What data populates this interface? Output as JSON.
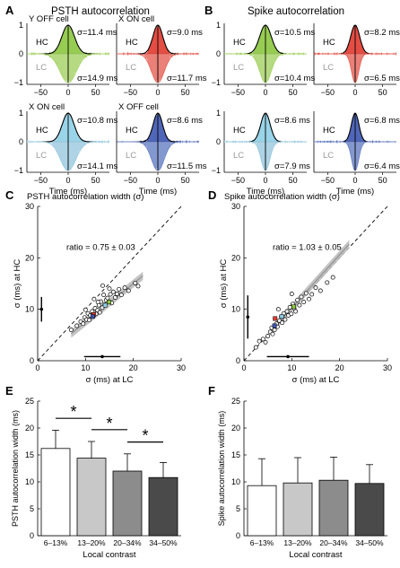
{
  "panels": {
    "A": {
      "letter": "A",
      "title": "PSTH autocorrelation"
    },
    "B": {
      "letter": "B",
      "title": "Spike autocorrelation"
    },
    "C": {
      "letter": "C",
      "title": "PSTH autocorrelation width (σ)"
    },
    "D": {
      "letter": "D",
      "title": "Spike autocorrelation width (σ)"
    },
    "E": {
      "letter": "E"
    },
    "F": {
      "letter": "F"
    }
  },
  "autocorr": {
    "hc_label": "HC",
    "lc_label": "LC",
    "xlabel": "Time (ms)",
    "xticks": [
      "−50",
      "0",
      "50"
    ],
    "yticks": [
      "1",
      "0",
      "−1"
    ],
    "cells": [
      {
        "panel": "A",
        "label": "Y OFF cell",
        "color": "#8cc63f",
        "lc_color": "#a9d46b",
        "sigma_hc": "σ=11.4 ms",
        "sigma_lc": "σ=14.9 ms",
        "s_hc": 11.4,
        "s_lc": 14.9,
        "show_xlabel": false,
        "show_yticks": true
      },
      {
        "panel": "A",
        "label": "X ON cell",
        "color": "#e03a2f",
        "lc_color": "#e66a5f",
        "sigma_hc": "σ=9.0 ms",
        "sigma_lc": "σ=11.7 ms",
        "s_hc": 9.0,
        "s_lc": 11.7,
        "show_xlabel": false,
        "show_yticks": false
      },
      {
        "panel": "A",
        "label": "X ON cell",
        "color": "#8ecfe6",
        "lc_color": "#9fcbe0",
        "sigma_hc": "σ=10.8 ms",
        "sigma_lc": "σ=14.1 ms",
        "s_hc": 10.8,
        "s_lc": 14.1,
        "show_xlabel": true,
        "show_yticks": true
      },
      {
        "panel": "A",
        "label": "X OFF cell",
        "color": "#3d55b0",
        "lc_color": "#6f86c8",
        "sigma_hc": "σ=8.6 ms",
        "sigma_lc": "σ=11.5 ms",
        "s_hc": 8.6,
        "s_lc": 11.5,
        "show_xlabel": true,
        "show_yticks": false
      },
      {
        "panel": "B",
        "label": "",
        "color": "#8cc63f",
        "lc_color": "#a9d46b",
        "sigma_hc": "σ=10.5 ms",
        "sigma_lc": "σ=10.4 ms",
        "s_hc": 10.5,
        "s_lc": 10.4,
        "show_xlabel": false,
        "show_yticks": true
      },
      {
        "panel": "B",
        "label": "",
        "color": "#e03a2f",
        "lc_color": "#e66a5f",
        "sigma_hc": "σ=8.2 ms",
        "sigma_lc": "σ=6.5 ms",
        "s_hc": 8.2,
        "s_lc": 6.5,
        "show_xlabel": false,
        "show_yticks": false
      },
      {
        "panel": "B",
        "label": "",
        "color": "#8ecfe6",
        "lc_color": "#9fcbe0",
        "sigma_hc": "σ=8.6 ms",
        "sigma_lc": "σ=7.9 ms",
        "s_hc": 8.6,
        "s_lc": 7.9,
        "show_xlabel": true,
        "show_yticks": true
      },
      {
        "panel": "B",
        "label": "",
        "color": "#3d55b0",
        "lc_color": "#6f86c8",
        "sigma_hc": "σ=6.8 ms",
        "sigma_lc": "σ=6.4 ms",
        "s_hc": 6.8,
        "s_lc": 6.4,
        "show_xlabel": true,
        "show_yticks": false
      }
    ]
  },
  "chart_data": [
    {
      "type": "scatter",
      "panel": "C",
      "title": "PSTH autocorrelation width (σ)",
      "xlabel": "σ (ms) at LC",
      "ylabel": "σ (ms) at HC",
      "xlim": [
        0,
        30
      ],
      "ylim": [
        0,
        30
      ],
      "xticks": [
        0,
        10,
        20,
        30
      ],
      "yticks": [
        0,
        10,
        20,
        30
      ],
      "annotation": "ratio = 0.75 ± 0.03",
      "fit_slope": 0.75,
      "x_mean": 13.5,
      "x_err": 3.8,
      "y_mean": 10.0,
      "y_err": 2.4,
      "points": [
        [
          7.0,
          6.0
        ],
        [
          8.2,
          6.8
        ],
        [
          9.0,
          7.6
        ],
        [
          9.5,
          7.2
        ],
        [
          9.8,
          8.4
        ],
        [
          10.2,
          8.0
        ],
        [
          10.5,
          9.2
        ],
        [
          10.8,
          7.9
        ],
        [
          11.0,
          8.8
        ],
        [
          11.4,
          9.6
        ],
        [
          11.6,
          8.6
        ],
        [
          12.0,
          10.2
        ],
        [
          12.2,
          9.1
        ],
        [
          12.5,
          9.8
        ],
        [
          12.8,
          10.8
        ],
        [
          13.0,
          9.4
        ],
        [
          13.2,
          11.5
        ],
        [
          13.5,
          10.3
        ],
        [
          13.8,
          12.8
        ],
        [
          14.0,
          10.9
        ],
        [
          14.3,
          11.8
        ],
        [
          14.6,
          12.2
        ],
        [
          14.9,
          11.4
        ],
        [
          15.2,
          12.9
        ],
        [
          15.5,
          11.2
        ],
        [
          15.8,
          13.4
        ],
        [
          16.2,
          12.3
        ],
        [
          16.6,
          13.0
        ],
        [
          17.0,
          13.9
        ],
        [
          17.5,
          12.8
        ],
        [
          18.2,
          14.2
        ],
        [
          19.0,
          13.6
        ],
        [
          20.4,
          15.1
        ],
        [
          21.0,
          14.5
        ],
        [
          11.8,
          12.0
        ],
        [
          12.6,
          11.4
        ],
        [
          13.6,
          14.6
        ],
        [
          10.0,
          9.9
        ],
        [
          15.0,
          14.0
        ]
      ],
      "highlights": [
        {
          "x": 14.9,
          "y": 11.4,
          "color": "#8cc63f"
        },
        {
          "x": 11.7,
          "y": 9.0,
          "color": "#e03a2f"
        },
        {
          "x": 14.1,
          "y": 10.8,
          "color": "#8ecfe6"
        },
        {
          "x": 11.5,
          "y": 8.6,
          "color": "#3d55b0"
        }
      ]
    },
    {
      "type": "scatter",
      "panel": "D",
      "title": "Spike autocorrelation width (σ)",
      "xlabel": "σ (ms) at LC",
      "ylabel": "σ (ms) at HC",
      "xlim": [
        0,
        30
      ],
      "ylim": [
        0,
        30
      ],
      "xticks": [
        0,
        10,
        20,
        30
      ],
      "yticks": [
        0,
        10,
        20,
        30
      ],
      "annotation": "ratio = 1.03 ± 0.05",
      "fit_slope": 1.03,
      "x_mean": 9.2,
      "x_err": 4.4,
      "y_mean": 8.5,
      "y_err": 4.2,
      "points": [
        [
          2.5,
          2.6
        ],
        [
          3.2,
          3.8
        ],
        [
          4.0,
          4.2
        ],
        [
          4.5,
          3.6
        ],
        [
          5.0,
          4.8
        ],
        [
          5.5,
          5.6
        ],
        [
          5.8,
          6.4
        ],
        [
          6.0,
          5.2
        ],
        [
          6.4,
          6.0
        ],
        [
          6.8,
          7.2
        ],
        [
          7.0,
          6.6
        ],
        [
          7.4,
          7.8
        ],
        [
          7.8,
          8.6
        ],
        [
          8.0,
          7.4
        ],
        [
          8.3,
          9.2
        ],
        [
          8.6,
          8.0
        ],
        [
          9.0,
          9.6
        ],
        [
          9.3,
          8.8
        ],
        [
          9.6,
          10.4
        ],
        [
          9.9,
          9.1
        ],
        [
          10.2,
          11.0
        ],
        [
          10.5,
          10.2
        ],
        [
          10.8,
          9.6
        ],
        [
          11.2,
          11.8
        ],
        [
          11.6,
          10.8
        ],
        [
          12.0,
          12.4
        ],
        [
          12.5,
          11.4
        ],
        [
          13.0,
          13.1
        ],
        [
          13.6,
          12.0
        ],
        [
          14.2,
          12.9
        ],
        [
          15.0,
          14.2
        ],
        [
          16.0,
          13.6
        ],
        [
          17.4,
          15.2
        ],
        [
          18.6,
          16.2
        ],
        [
          7.2,
          10.0
        ],
        [
          10.0,
          13.0
        ]
      ],
      "highlights": [
        {
          "x": 10.4,
          "y": 10.5,
          "color": "#8cc63f"
        },
        {
          "x": 6.5,
          "y": 8.2,
          "color": "#e03a2f"
        },
        {
          "x": 7.9,
          "y": 8.6,
          "color": "#8ecfe6"
        },
        {
          "x": 6.4,
          "y": 6.8,
          "color": "#3d55b0"
        }
      ]
    },
    {
      "type": "bar",
      "panel": "E",
      "ylabel": "PSTH autocorrelation width (ms)",
      "xlabel": "Local contrast",
      "ylim": [
        0,
        25
      ],
      "yticks": [
        0,
        5,
        10,
        15,
        20,
        25
      ],
      "categories": [
        "6–13%",
        "13–20%",
        "20–34%",
        "34–50%"
      ],
      "values": [
        16.2,
        14.4,
        12.0,
        10.8
      ],
      "errors": [
        3.4,
        3.1,
        3.2,
        2.8
      ],
      "colors": [
        "#ffffff",
        "#c8c8c8",
        "#8c8c8c",
        "#4a4a4a"
      ],
      "significance": [
        {
          "from": 0,
          "to": 1,
          "label": "*"
        },
        {
          "from": 1,
          "to": 2,
          "label": "*"
        },
        {
          "from": 2,
          "to": 3,
          "label": "*"
        }
      ]
    },
    {
      "type": "bar",
      "panel": "F",
      "ylabel": "Spike autocorrelation width (ms)",
      "xlabel": "Local contrast",
      "ylim": [
        0,
        25
      ],
      "yticks": [
        0,
        5,
        10,
        15,
        20,
        25
      ],
      "categories": [
        "6–13%",
        "13–20%",
        "20–34%",
        "34–50%"
      ],
      "values": [
        9.3,
        9.8,
        10.3,
        9.7
      ],
      "errors": [
        5.0,
        4.7,
        4.3,
        3.5
      ],
      "colors": [
        "#ffffff",
        "#c8c8c8",
        "#8c8c8c",
        "#4a4a4a"
      ],
      "significance": []
    }
  ]
}
